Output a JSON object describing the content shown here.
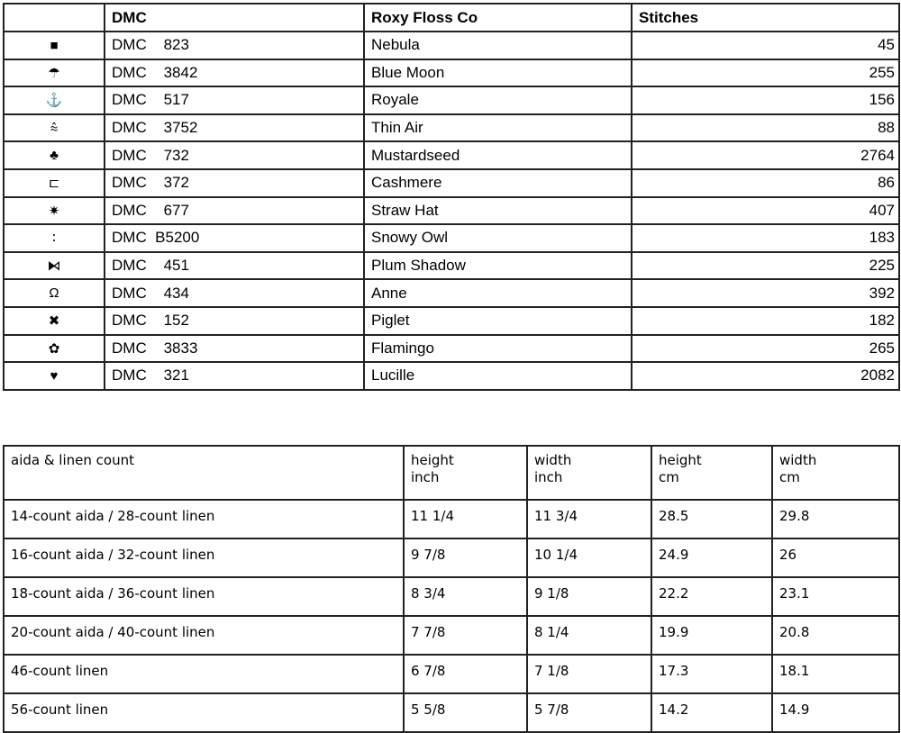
{
  "floss_table": {
    "headers": [
      "",
      "DMC",
      "Roxy Floss Co",
      "Stitches"
    ],
    "rows": [
      {
        "symbol": "■",
        "symbol_icon": "square-icon",
        "dmc": "DMC    823",
        "roxy": "Nebula",
        "stitches": "45"
      },
      {
        "symbol": "☂",
        "symbol_icon": "umbrella-icon",
        "dmc": "DMC    3842",
        "roxy": "Blue Moon",
        "stitches": "255"
      },
      {
        "symbol": "⚓",
        "symbol_icon": "anchor-icon",
        "dmc": "DMC    517",
        "roxy": "Royale",
        "stitches": "156"
      },
      {
        "symbol": "⩯",
        "symbol_icon": "double-chevron-arc-icon",
        "dmc": "DMC    3752",
        "roxy": "Thin Air",
        "stitches": "88"
      },
      {
        "symbol": "♣",
        "symbol_icon": "club-icon",
        "dmc": "DMC    732",
        "roxy": "Mustardseed",
        "stitches": "2764"
      },
      {
        "symbol": "⊏",
        "symbol_icon": "bracket-icon",
        "dmc": "DMC    372",
        "roxy": "Cashmere",
        "stitches": "86"
      },
      {
        "symbol": "✷",
        "symbol_icon": "star-burst-icon",
        "dmc": "DMC    677",
        "roxy": "Straw Hat",
        "stitches": "407"
      },
      {
        "symbol": "∶",
        "symbol_icon": "colon-icon",
        "dmc": "DMC  B5200",
        "roxy": "Snowy Owl",
        "stitches": "183"
      },
      {
        "symbol": "⧑",
        "symbol_icon": "bowtie-icon",
        "dmc": "DMC    451",
        "roxy": "Plum Shadow",
        "stitches": "225"
      },
      {
        "symbol": "Ω",
        "symbol_icon": "omega-icon",
        "dmc": "DMC    434",
        "roxy": "Anne",
        "stitches": "392"
      },
      {
        "symbol": "✖",
        "symbol_icon": "heavy-x-icon",
        "dmc": "DMC    152",
        "roxy": "Piglet",
        "stitches": "182"
      },
      {
        "symbol": "✿",
        "symbol_icon": "flower-icon",
        "dmc": "DMC    3833",
        "roxy": "Flamingo",
        "stitches": "265"
      },
      {
        "symbol": "♥",
        "symbol_icon": "heart-icon",
        "dmc": "DMC    321",
        "roxy": "Lucille",
        "stitches": "2082"
      }
    ]
  },
  "size_table": {
    "headers": [
      {
        "l1": "aida & linen count",
        "l2": ""
      },
      {
        "l1": "height",
        "l2": "inch"
      },
      {
        "l1": "width",
        "l2": "inch"
      },
      {
        "l1": "height",
        "l2": "cm"
      },
      {
        "l1": "width",
        "l2": "cm"
      }
    ],
    "rows": [
      [
        "14-count aida / 28-count linen",
        "11 1/4",
        "11 3/4",
        "28.5",
        "29.8"
      ],
      [
        "16-count aida / 32-count linen",
        "9 7/8",
        "10 1/4",
        "24.9",
        "26"
      ],
      [
        "18-count aida / 36-count linen",
        "8 3/4",
        "9 1/8",
        "22.2",
        "23.1"
      ],
      [
        "20-count aida / 40-count linen",
        "7 7/8",
        "8 1/4",
        "19.9",
        "20.8"
      ],
      [
        "46-count linen",
        "6 7/8",
        "7 1/8",
        "17.3",
        "18.1"
      ],
      [
        "56-count linen",
        "5 5/8",
        "5 7/8",
        "14.2",
        "14.9"
      ]
    ]
  }
}
